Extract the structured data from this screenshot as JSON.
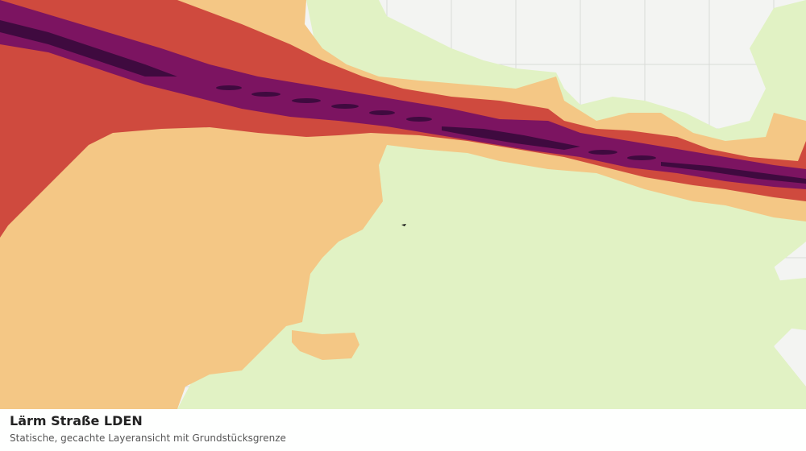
{
  "layer": {
    "title": "Lärm Straße LDEN",
    "subtitle": "Statische, gecachte Layeransicht mit Grundstücksgrenze"
  },
  "legend_colors": {
    "background": "#f3f4f2",
    "parcel_lines": "#d9dbd8",
    "band_low": "#e1f2c4",
    "band_mid": "#f4c785",
    "band_high": "#cf4a3e",
    "band_very_high": "#7c1461",
    "band_peak": "#3f0a3f",
    "parcel_marker": "#111111"
  }
}
